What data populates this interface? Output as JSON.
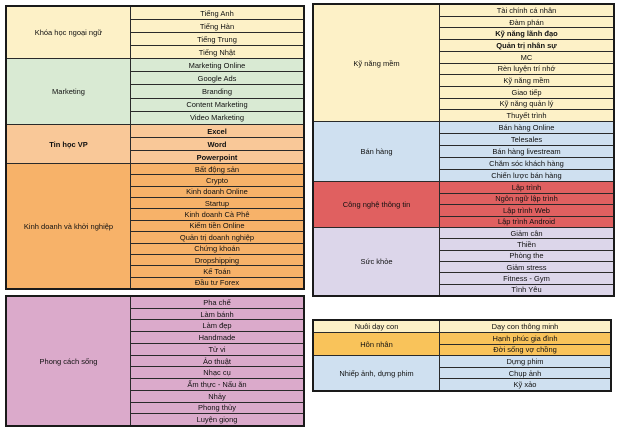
{
  "blocks": {
    "left_top": {
      "groups": [
        {
          "label": "Khóa học ngoại ngữ",
          "items": [
            "Tiếng Anh",
            "Tiếng Hàn",
            "Tiếng Trung",
            "Tiếng Nhật"
          ]
        },
        {
          "label": "Marketing",
          "items": [
            "Marketing Online",
            "Google Ads",
            "Branding",
            "Content Marketing",
            "Video Marketing"
          ]
        },
        {
          "label": "Tin học VP",
          "items": [
            "Excel",
            "Word",
            "Powerpoint"
          ]
        },
        {
          "label": "Kinh doanh và khởi nghiệp",
          "items": [
            "Bất động sản",
            "Crypto",
            "Kinh doanh Online",
            "Startup",
            "Kinh doanh Cà Phê",
            "Kiếm tiền Online",
            "Quản trị doanh nghiệp",
            "Chứng khoán",
            "Dropshipping",
            "Kế Toán",
            "Đầu tư Forex"
          ]
        }
      ]
    },
    "left_bottom": {
      "groups": [
        {
          "label": "Phong cách sống",
          "items": [
            "Pha chế",
            "Làm bánh",
            "Làm đẹp",
            "Handmade",
            "Tử vi",
            "Ảo thuật",
            "Nhạc cụ",
            "Ẩm thực - Nấu ăn",
            "Nhảy",
            "Phong thủy",
            "Luyện giọng"
          ]
        }
      ]
    },
    "right_top": {
      "groups": [
        {
          "label": "Kỹ năng mềm",
          "items": [
            "Tài chính cá nhân",
            "Đàm phán",
            "Kỹ năng lãnh đạo",
            "Quản trị nhân sự",
            "MC",
            "Rèn luyện trí nhớ",
            "Kỹ năng mềm",
            "Giao tiếp",
            "Kỹ năng quản lý",
            "Thuyết trình"
          ]
        },
        {
          "label": "Bán hàng",
          "items": [
            "Bán hàng Online",
            "Telesales",
            "Bán hàng livestream",
            "Chăm sóc khách hàng",
            "Chiến lược bán hàng"
          ]
        },
        {
          "label": "Công nghệ thông tin",
          "items": [
            "Lập trình",
            "Ngôn ngữ lập trình",
            "Lập trình Web",
            "Lập trình Android"
          ]
        },
        {
          "label": "Sức khỏe",
          "items": [
            "Giảm cân",
            "Thiền",
            "Phòng the",
            "Giảm stress",
            "Fitness - Gym",
            "Tình Yêu"
          ]
        }
      ]
    },
    "right_bottom": {
      "groups": [
        {
          "label": "Nuôi dạy con",
          "items": [
            "Dạy con thông minh"
          ]
        },
        {
          "label": "Hôn nhân",
          "items": [
            "Hạnh phúc gia đình",
            "Đời sống vợ chồng"
          ]
        },
        {
          "label": "Nhiếp ảnh, dựng phim",
          "items": [
            "Dựng phim",
            "Chụp ảnh",
            "Kỹ xảo"
          ]
        }
      ]
    }
  },
  "colors": {
    "yellow": "#fdf1c7",
    "green": "#d9ead3",
    "orange": "#f9c898",
    "orange_dark": "#f7b269",
    "pink": "#dbaacb",
    "blue": "#cfe0f0",
    "red": "#e06060",
    "lavender": "#dcd6ea"
  }
}
